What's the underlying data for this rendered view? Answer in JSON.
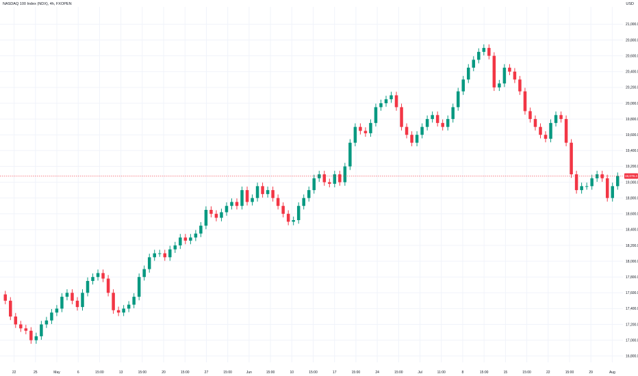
{
  "header": {
    "title": "NASDAQ 100 Index (NDX), 4h, FXOPEN",
    "currency": "USD"
  },
  "colors": {
    "up": "#089981",
    "down": "#f23645",
    "grid": "#f0f3fa",
    "price_line": "#f23645",
    "background": "#ffffff"
  },
  "chart_data": {
    "type": "candlestick",
    "title": "NASDAQ 100 Index (NDX), 4h, FXOPEN",
    "y_axis": {
      "ylim": [
        16720,
        21220
      ],
      "ticks": [
        "16,800.0",
        "17,000.0",
        "17,200.0",
        "17,400.0",
        "17,600.0",
        "17,800.0",
        "18,000.0",
        "18,200.0",
        "18,400.0",
        "18,600.0",
        "18,800.0",
        "19,000.0",
        "19,200.0",
        "19,400.0",
        "19,600.0",
        "19,800.0",
        "20,000.0",
        "20,200.0",
        "20,400.0",
        "20,600.0",
        "20,800.0",
        "21,000.0"
      ],
      "tick_values": [
        16800,
        17000,
        17200,
        17400,
        17600,
        17800,
        18000,
        18200,
        18400,
        18600,
        18800,
        19000,
        19200,
        19400,
        19600,
        19800,
        20000,
        20200,
        20400,
        20600,
        20800,
        21000
      ]
    },
    "x_axis": {
      "ticks": [
        "22",
        "25",
        "May",
        "6",
        "15:00",
        "13",
        "15:00",
        "20",
        "15:00",
        "27",
        "15:00",
        "Jun",
        "15:00",
        "10",
        "15:00",
        "17",
        "15:00",
        "24",
        "15:00",
        "Jul",
        "11:00",
        "8",
        "15:00",
        "15",
        "15:00",
        "22",
        "15:00",
        "29",
        "Aug"
      ]
    },
    "current_price": {
      "value": 19078.4,
      "label": "19,078.4"
    },
    "closes": [
      17500,
      17300,
      17200,
      17150,
      17120,
      17000,
      17050,
      17200,
      17250,
      17350,
      17400,
      17550,
      17600,
      17500,
      17420,
      17600,
      17750,
      17800,
      17850,
      17780,
      17600,
      17380,
      17350,
      17400,
      17450,
      17550,
      17800,
      17900,
      18050,
      18100,
      18100,
      18050,
      18150,
      18200,
      18300,
      18260,
      18300,
      18350,
      18450,
      18650,
      18600,
      18550,
      18620,
      18700,
      18750,
      18700,
      18900,
      18750,
      18800,
      18950,
      18850,
      18900,
      18800,
      18700,
      18600,
      18500,
      18520,
      18700,
      18800,
      18900,
      19050,
      19100,
      19000,
      18980,
      19100,
      19000,
      19200,
      19500,
      19700,
      19650,
      19620,
      19750,
      19950,
      20000,
      20050,
      20100,
      19950,
      19700,
      19600,
      19500,
      19600,
      19700,
      19800,
      19850,
      19750,
      19700,
      19800,
      19950,
      20150,
      20300,
      20450,
      20550,
      20650,
      20700,
      20600,
      20200,
      20250,
      20450,
      20400,
      20300,
      20150,
      19900,
      19800,
      19700,
      19600,
      19550,
      19750,
      19850,
      19800,
      19500,
      19100,
      18900,
      18950,
      18950,
      19050,
      19100,
      19050,
      18800,
      18950,
      19078.4
    ]
  }
}
